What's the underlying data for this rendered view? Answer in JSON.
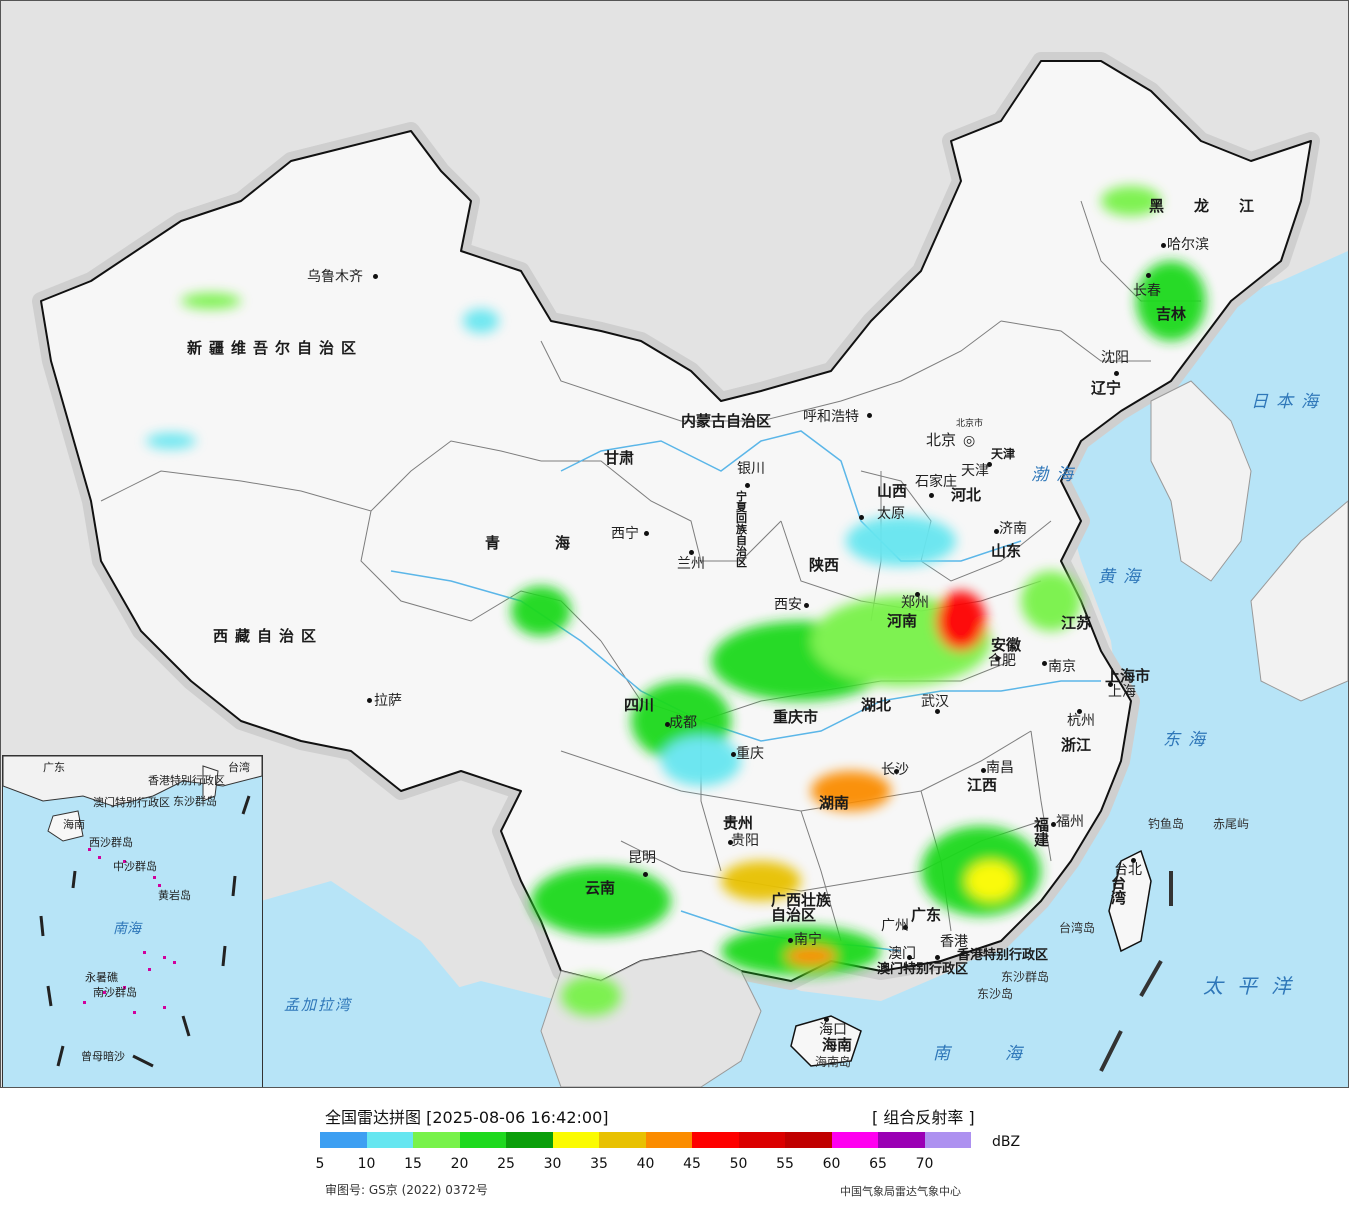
{
  "map": {
    "provinces": [
      {
        "id": "xinjiang",
        "name": "新疆维吾尔自治区"
      },
      {
        "id": "xizang",
        "name": "西藏自治区"
      },
      {
        "id": "qinghai",
        "name": "青海"
      },
      {
        "id": "gansu",
        "name": "甘肃"
      },
      {
        "id": "neimenggu",
        "name": "内蒙古自治区"
      },
      {
        "id": "heilongjiang",
        "name": "黑龙江"
      },
      {
        "id": "jilin",
        "name": "吉林"
      },
      {
        "id": "liaoning",
        "name": "辽宁"
      },
      {
        "id": "hebei",
        "name": "河北"
      },
      {
        "id": "shanxi",
        "name": "山西"
      },
      {
        "id": "shandong",
        "name": "山东"
      },
      {
        "id": "henan",
        "name": "河南"
      },
      {
        "id": "shaanxi",
        "name": "陕西"
      },
      {
        "id": "ningxia",
        "name": "宁夏回族自治区"
      },
      {
        "id": "sichuan",
        "name": "四川"
      },
      {
        "id": "chongqing",
        "name": "重庆市"
      },
      {
        "id": "hubei",
        "name": "湖北"
      },
      {
        "id": "anhui",
        "name": "安徽"
      },
      {
        "id": "jiangsu",
        "name": "江苏"
      },
      {
        "id": "shanghai",
        "name": "上海市"
      },
      {
        "id": "zhejiang",
        "name": "浙江"
      },
      {
        "id": "jiangxi",
        "name": "江西"
      },
      {
        "id": "hunan",
        "name": "湖南"
      },
      {
        "id": "guizhou",
        "name": "贵州"
      },
      {
        "id": "yunnan",
        "name": "云南"
      },
      {
        "id": "guangxi",
        "name": "广西壮族自治区"
      },
      {
        "id": "guangdong",
        "name": "广东"
      },
      {
        "id": "fujian",
        "name": "福建"
      },
      {
        "id": "hainan",
        "name": "海南"
      },
      {
        "id": "taiwan",
        "name": "台湾"
      },
      {
        "id": "tianjin",
        "name": "天津"
      },
      {
        "id": "hongkong",
        "name": "香港特别行政区"
      },
      {
        "id": "macau",
        "name": "澳门特别行政区"
      }
    ],
    "cities": [
      {
        "id": "urumqi",
        "name": "乌鲁木齐"
      },
      {
        "id": "lhasa",
        "name": "拉萨"
      },
      {
        "id": "xining",
        "name": "西宁"
      },
      {
        "id": "lanzhou",
        "name": "兰州"
      },
      {
        "id": "yinchuan",
        "name": "银川"
      },
      {
        "id": "hohhot",
        "name": "呼和浩特"
      },
      {
        "id": "beijing",
        "name": "北京"
      },
      {
        "id": "beijing_small",
        "name": "北京市"
      },
      {
        "id": "tianjin_city",
        "name": "天津"
      },
      {
        "id": "shijiazhuang",
        "name": "石家庄"
      },
      {
        "id": "taiyuan",
        "name": "太原"
      },
      {
        "id": "jinan",
        "name": "济南"
      },
      {
        "id": "zhengzhou",
        "name": "郑州"
      },
      {
        "id": "xian",
        "name": "西安"
      },
      {
        "id": "hefei",
        "name": "合肥"
      },
      {
        "id": "nanjing",
        "name": "南京"
      },
      {
        "id": "shanghai_city",
        "name": "上海"
      },
      {
        "id": "hangzhou",
        "name": "杭州"
      },
      {
        "id": "wuhan",
        "name": "武汉"
      },
      {
        "id": "chengdu",
        "name": "成都"
      },
      {
        "id": "chongqing_city",
        "name": "重庆"
      },
      {
        "id": "changsha",
        "name": "长沙"
      },
      {
        "id": "nanchang",
        "name": "南昌"
      },
      {
        "id": "fuzhou",
        "name": "福州"
      },
      {
        "id": "guiyang",
        "name": "贵阳"
      },
      {
        "id": "kunming",
        "name": "昆明"
      },
      {
        "id": "nanning",
        "name": "南宁"
      },
      {
        "id": "guangzhou",
        "name": "广州"
      },
      {
        "id": "hongkong_city",
        "name": "香港"
      },
      {
        "id": "macau_city",
        "name": "澳门"
      },
      {
        "id": "haikou",
        "name": "海口"
      },
      {
        "id": "taibei",
        "name": "台北"
      },
      {
        "id": "harbin",
        "name": "哈尔滨"
      },
      {
        "id": "changchun",
        "name": "长春"
      },
      {
        "id": "shenyang",
        "name": "沈阳"
      }
    ],
    "seas": [
      {
        "id": "bohai",
        "name": "渤海"
      },
      {
        "id": "huanghai",
        "name": "黄海"
      },
      {
        "id": "donghai",
        "name": "东海"
      },
      {
        "id": "nanhai",
        "name": "南海"
      },
      {
        "id": "taipingyang",
        "name": "太平洋"
      },
      {
        "id": "ribenhai",
        "name": "日本海"
      },
      {
        "id": "mengjialawan",
        "name": "孟加拉湾"
      }
    ],
    "islands": [
      {
        "id": "diaoyudao",
        "name": "钓鱼岛"
      },
      {
        "id": "chiweiyu",
        "name": "赤尾屿"
      },
      {
        "id": "dongsha1",
        "name": "东沙群岛"
      },
      {
        "id": "dongsha2",
        "name": "东沙岛"
      },
      {
        "id": "hainandao",
        "name": "海南岛"
      },
      {
        "id": "taiwandao",
        "name": "台湾岛"
      }
    ],
    "inset": {
      "labels": [
        {
          "id": "i_gd",
          "name": "广东"
        },
        {
          "id": "i_tw",
          "name": "台湾"
        },
        {
          "id": "i_hk",
          "name": "香港特别行政区"
        },
        {
          "id": "i_mo",
          "name": "澳门特别行政区"
        },
        {
          "id": "i_dongsha",
          "name": "东沙群岛"
        },
        {
          "id": "i_hainan",
          "name": "海南"
        },
        {
          "id": "i_xisha",
          "name": "西沙群岛"
        },
        {
          "id": "i_zhongsha",
          "name": "中沙群岛"
        },
        {
          "id": "i_huangyan",
          "name": "黄岩岛"
        },
        {
          "id": "i_nanhai",
          "name": "南海"
        },
        {
          "id": "i_nansha",
          "name": "南沙群岛"
        },
        {
          "id": "i_yongshu",
          "name": "永暑礁"
        },
        {
          "id": "i_zengmu",
          "name": "曾母暗沙"
        }
      ]
    }
  },
  "legend": {
    "title": "全国雷达拼图 [2025-08-06 16:42:00]",
    "product": "[ 组合反射率 ]",
    "unit": "dBZ",
    "ticks": [
      "5",
      "10",
      "15",
      "20",
      "25",
      "30",
      "35",
      "40",
      "45",
      "50",
      "55",
      "60",
      "65",
      "70"
    ],
    "colors": [
      "#3d9ff2",
      "#66e6f0",
      "#78f24a",
      "#1ed91e",
      "#0a9e0a",
      "#fbfb02",
      "#e8c102",
      "#fb8c00",
      "#fe0000",
      "#db0000",
      "#c00000",
      "#ff00f0",
      "#9a00b4",
      "#ad91f0"
    ],
    "review_number": "审图号: GS京 (2022) 0372号",
    "organization": "中国气象局雷达气象中心"
  }
}
